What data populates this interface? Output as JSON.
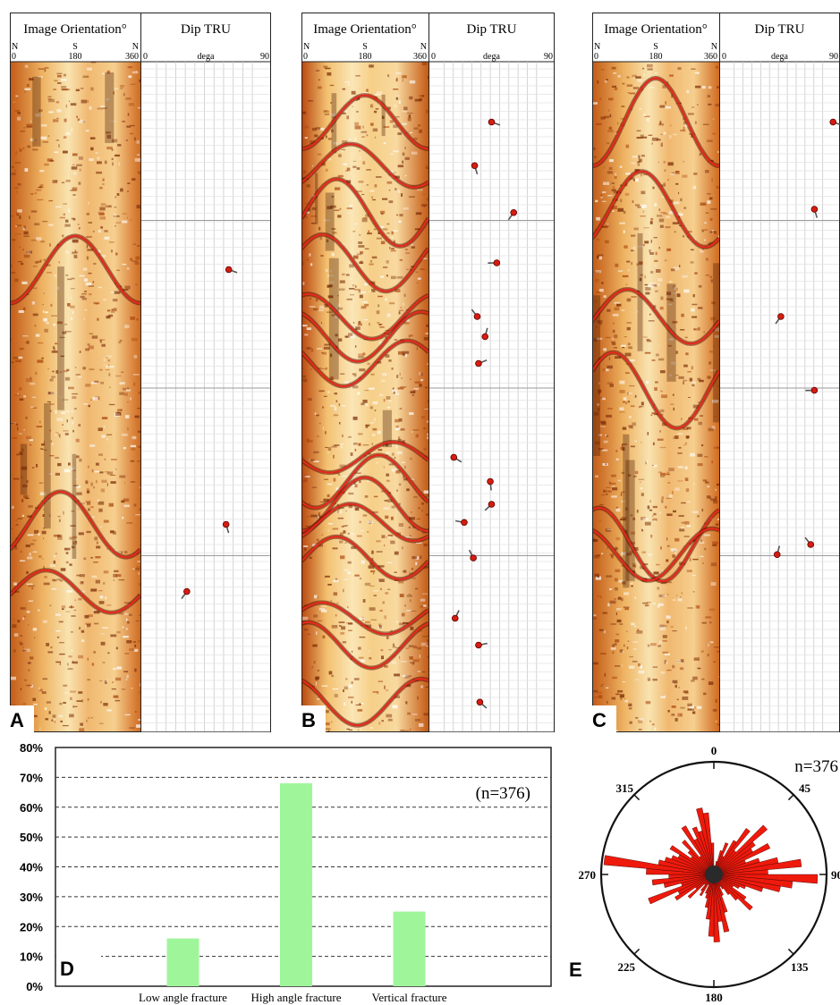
{
  "log_panels": [
    {
      "letter": "A",
      "image_header": "Image Orientation°",
      "dip_header": "Dip TRU",
      "dir_top": [
        "N",
        "S",
        "N"
      ],
      "dir_bottom": [
        "0",
        "180",
        "360"
      ],
      "dip_scale": [
        "0",
        "dega",
        "90"
      ],
      "dips": [
        {
          "depth": 0.31,
          "dip": 62
        },
        {
          "depth": 0.69,
          "dip": 60
        },
        {
          "depth": 0.79,
          "dip": 31
        }
      ]
    },
    {
      "letter": "B",
      "image_header": "Image Orientation°",
      "dip_header": "Dip TRU",
      "dir_top": [
        "N",
        "S",
        "N"
      ],
      "dip_scale_extra": "N",
      "dir_bottom": [
        "0",
        "180",
        "360"
      ],
      "dip_scale": [
        "0",
        "dega",
        "90"
      ],
      "dips": [
        {
          "depth": 0.09,
          "dip": 45
        },
        {
          "depth": 0.155,
          "dip": 32
        },
        {
          "depth": 0.225,
          "dip": 62
        },
        {
          "depth": 0.3,
          "dip": 49
        },
        {
          "depth": 0.38,
          "dip": 34
        },
        {
          "depth": 0.41,
          "dip": 40
        },
        {
          "depth": 0.45,
          "dip": 35
        },
        {
          "depth": 0.59,
          "dip": 16
        },
        {
          "depth": 0.626,
          "dip": 44
        },
        {
          "depth": 0.66,
          "dip": 45
        },
        {
          "depth": 0.687,
          "dip": 24
        },
        {
          "depth": 0.74,
          "dip": 31
        },
        {
          "depth": 0.83,
          "dip": 17
        },
        {
          "depth": 0.87,
          "dip": 35
        },
        {
          "depth": 0.955,
          "dip": 36
        }
      ]
    },
    {
      "letter": "C",
      "image_header": "Image Orientation°",
      "dip_header": "Dip TRU",
      "dir_top": [
        "N",
        "S",
        "N"
      ],
      "dir_bottom": [
        "0",
        "180",
        "360"
      ],
      "dip_scale": [
        "0",
        "dega",
        "90"
      ],
      "dips": [
        {
          "depth": 0.09,
          "dip": 88
        },
        {
          "depth": 0.22,
          "dip": 73
        },
        {
          "depth": 0.38,
          "dip": 46
        },
        {
          "depth": 0.49,
          "dip": 73
        },
        {
          "depth": 0.72,
          "dip": 70
        },
        {
          "depth": 0.735,
          "dip": 43
        }
      ]
    }
  ],
  "chart_data": [
    {
      "type": "bar",
      "panel_letter": "D",
      "categories": [
        "Low angle fracture",
        "High angle fracture",
        "Vertical fracture"
      ],
      "values": [
        16,
        68,
        25
      ],
      "y_ticks": [
        "0%",
        "10%",
        "20%",
        "30%",
        "40%",
        "50%",
        "60%",
        "70%",
        "80%"
      ],
      "ylim": [
        0,
        80
      ],
      "annotation": "(n=376)",
      "bar_color": "#9ff59a",
      "grid": "dashed horizontal"
    },
    {
      "type": "rose",
      "panel_letter": "E",
      "annotation": "n=376",
      "direction_labels": [
        "0",
        "45",
        "90",
        "135",
        "180",
        "225",
        "270",
        "315"
      ],
      "bin_width_deg": 5,
      "bar_color": "#ee1a0c",
      "values": [
        0.06,
        0.05,
        0.12,
        0.22,
        0.3,
        0.18,
        0.35,
        0.5,
        0.28,
        0.62,
        0.45,
        0.4,
        0.55,
        0.3,
        0.42,
        0.58,
        0.78,
        0.48,
        0.92,
        0.7,
        0.6,
        0.45,
        0.3,
        0.25,
        0.2,
        0.35,
        0.45,
        0.3,
        0.22,
        0.15,
        0.12,
        0.2,
        0.35,
        0.52,
        0.42,
        0.6,
        0.55,
        0.4,
        0.3,
        0.22,
        0.18,
        0.1,
        0.22,
        0.18,
        0.12,
        0.3,
        0.2,
        0.4,
        0.35,
        0.62,
        0.3,
        0.45,
        0.55,
        0.4,
        0.6,
        0.98,
        0.5,
        0.45,
        0.4,
        0.35,
        0.45,
        0.25,
        0.3,
        0.4,
        0.2,
        0.5,
        0.35,
        0.45,
        0.4,
        0.6,
        0.55,
        0.28
      ]
    }
  ]
}
